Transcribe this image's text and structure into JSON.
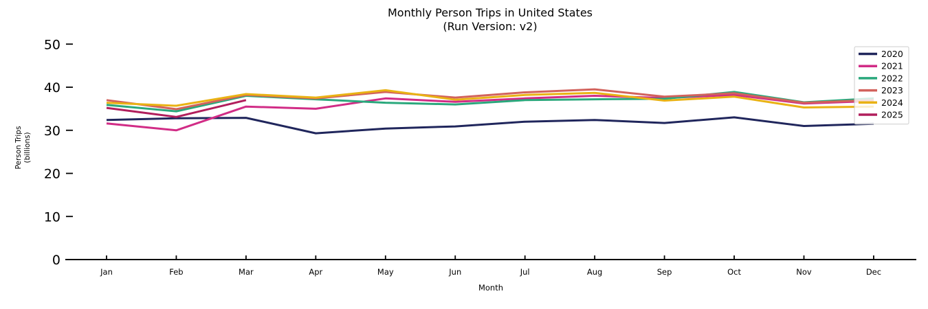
{
  "chart_data": {
    "type": "line",
    "title": "Monthly Person Trips in United States",
    "subtitle": "(Run Version: v2)",
    "xlabel": "Month",
    "ylabel_lines": [
      "Person Trips",
      "(billions)"
    ],
    "categories": [
      "Jan",
      "Feb",
      "Mar",
      "Apr",
      "May",
      "Jun",
      "Jul",
      "Aug",
      "Sep",
      "Oct",
      "Nov",
      "Dec"
    ],
    "yticks": [
      0,
      10,
      20,
      30,
      40,
      50
    ],
    "ylim": [
      0,
      50
    ],
    "grid": false,
    "legend_position": "upper right",
    "series": [
      {
        "name": "2020",
        "color": "#20265c",
        "values": [
          32.4,
          32.8,
          32.9,
          29.3,
          30.4,
          30.9,
          32.0,
          32.4,
          31.7,
          33.0,
          31.0,
          31.5
        ]
      },
      {
        "name": "2021",
        "color": "#d12c86",
        "values": [
          31.6,
          30.0,
          35.5,
          35.0,
          37.4,
          36.6,
          37.4,
          38.0,
          37.5,
          38.2,
          36.2,
          36.8
        ]
      },
      {
        "name": "2022",
        "color": "#2aa87c",
        "values": [
          35.9,
          34.4,
          38.0,
          37.2,
          36.4,
          36.0,
          37.0,
          37.2,
          37.3,
          38.9,
          36.5,
          37.4
        ]
      },
      {
        "name": "2023",
        "color": "#d2625c",
        "values": [
          37.0,
          34.9,
          38.2,
          37.4,
          38.9,
          37.6,
          38.8,
          39.5,
          37.8,
          38.6,
          36.4,
          37.0
        ]
      },
      {
        "name": "2024",
        "color": "#e9b214",
        "values": [
          36.4,
          35.7,
          38.4,
          37.6,
          39.3,
          37.1,
          38.2,
          38.7,
          36.9,
          37.8,
          35.3,
          35.5
        ]
      },
      {
        "name": "2025",
        "color": "#b11e5c",
        "values": [
          35.2,
          33.1,
          37.0
        ]
      }
    ]
  }
}
